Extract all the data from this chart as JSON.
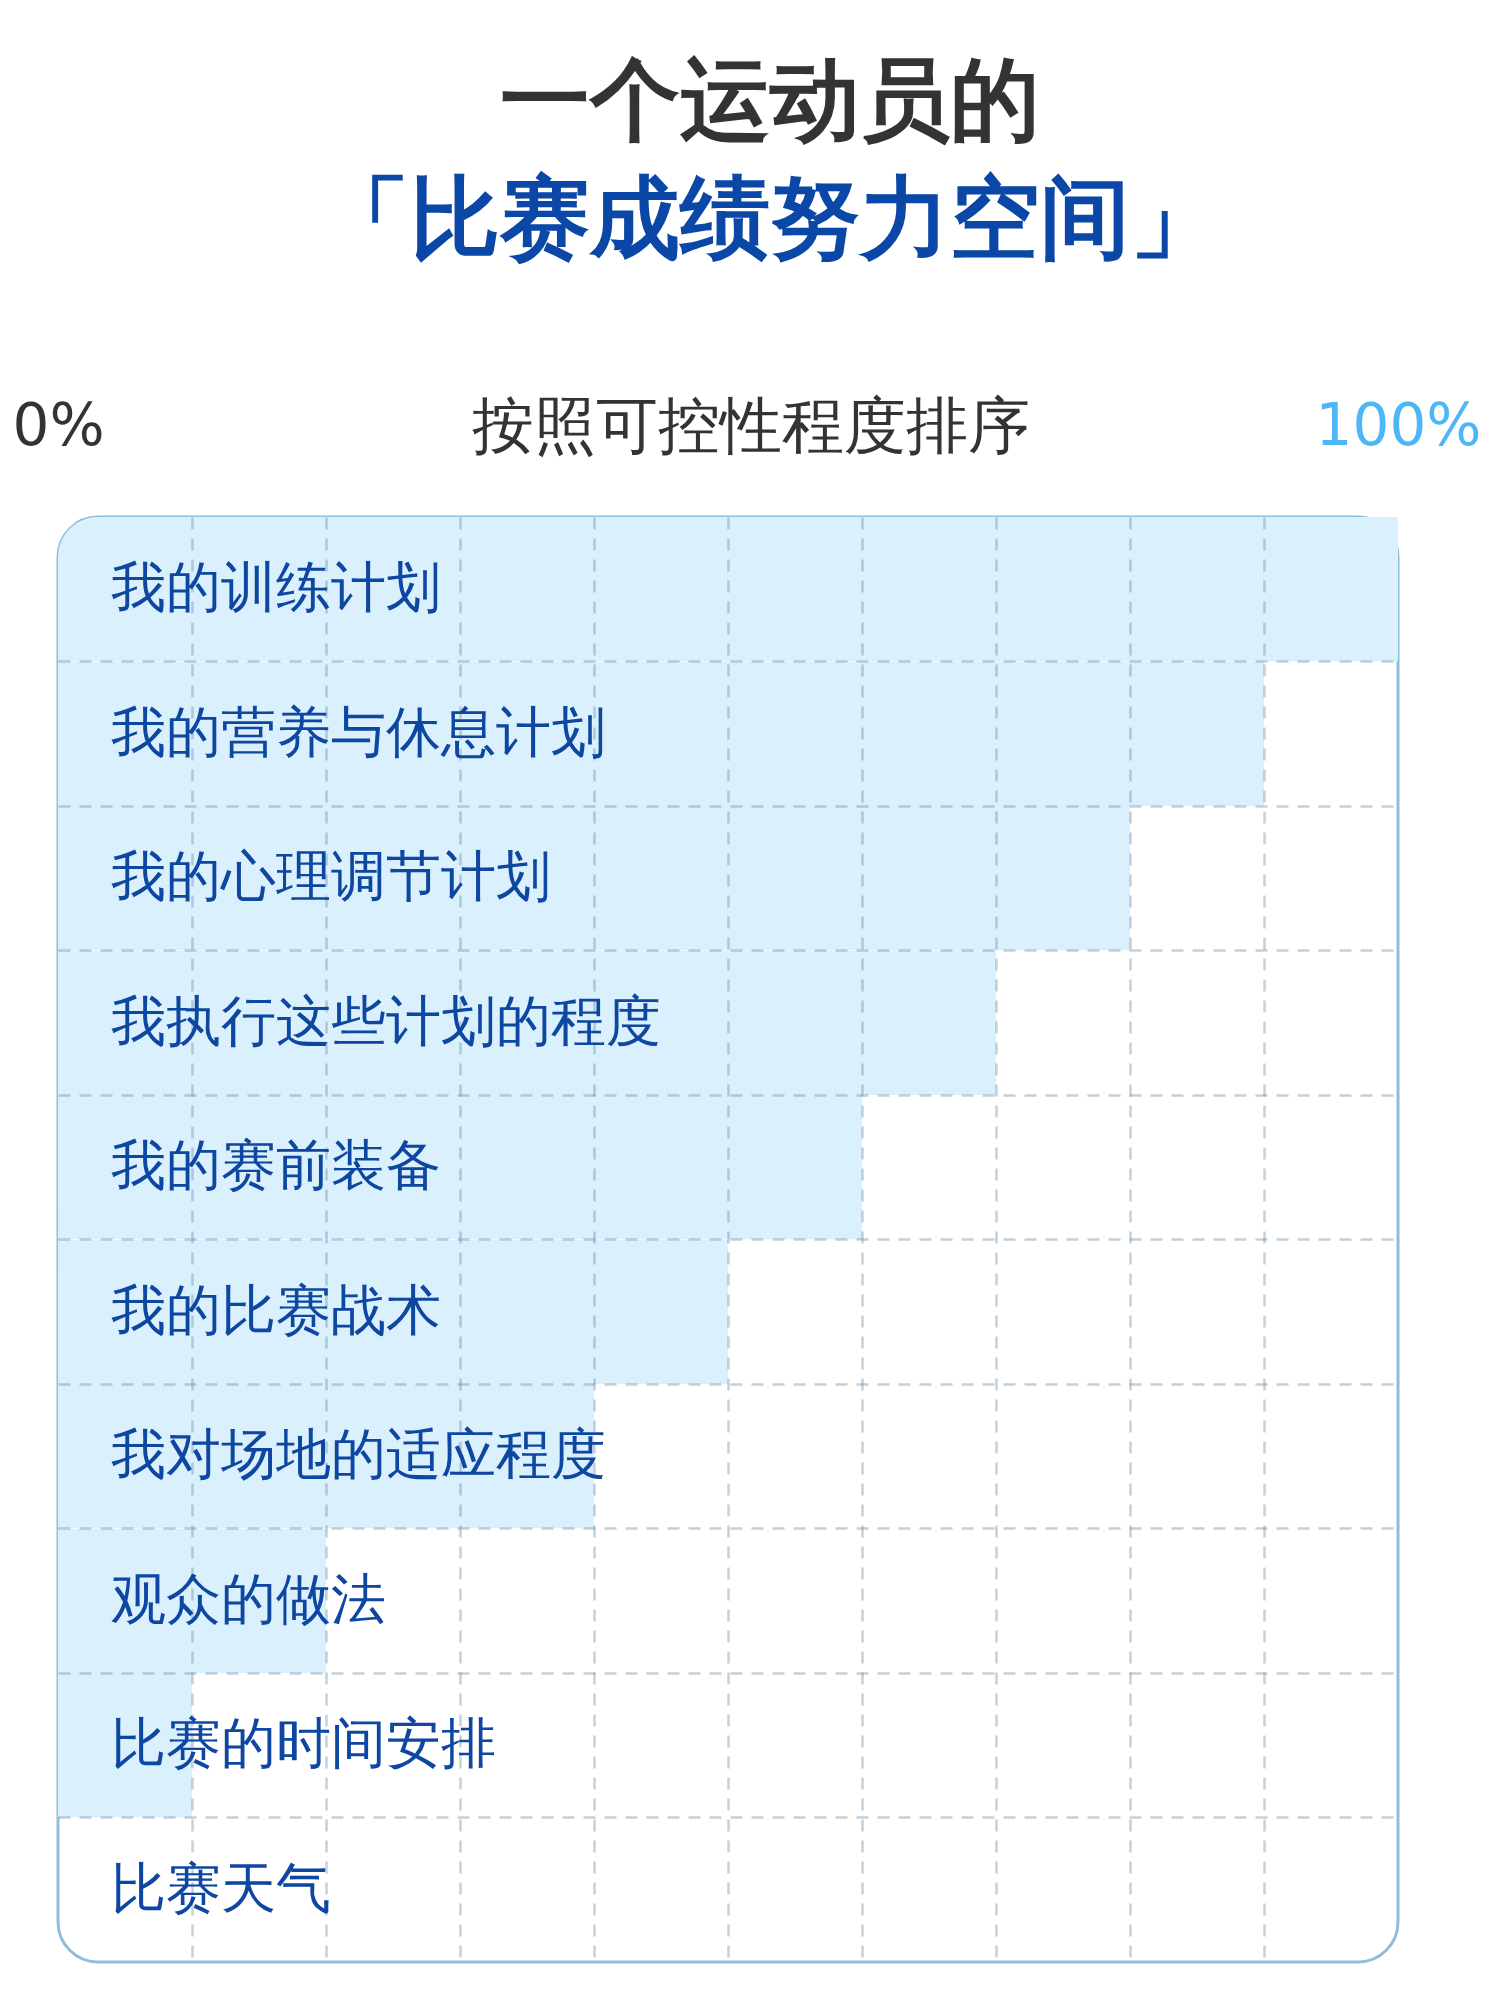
{
  "chart_data": {
    "type": "bar",
    "orientation": "horizontal",
    "title": "一个运动员的",
    "subtitle": "「比赛成绩努力空间」",
    "xlabel": "按照可控性程度排序",
    "categories": [
      "我的训练计划",
      "我的营养与休息计划",
      "我的心理调节计划",
      "我执行这些计划的程度",
      "我的赛前装备",
      "我的比赛战术",
      "我对场地的适应程度",
      "观众的做法",
      "比赛的时间安排",
      "比赛天气"
    ],
    "values": [
      100,
      90,
      80,
      70,
      60,
      50,
      40,
      20,
      10,
      0
    ],
    "color": "#dbf0fd",
    "xlim": [
      0,
      100
    ],
    "xticks": [
      {
        "value": 0,
        "label": "0%"
      },
      {
        "value": 10,
        "label": null
      },
      {
        "value": 20,
        "label": null
      },
      {
        "value": 30,
        "label": null
      },
      {
        "value": 40,
        "label": null
      },
      {
        "value": 50,
        "label": null
      },
      {
        "value": 60,
        "label": null
      },
      {
        "value": 70,
        "label": null
      },
      {
        "value": 80,
        "label": null
      },
      {
        "value": 90,
        "label": null
      },
      {
        "value": 100,
        "label": "100%"
      }
    ],
    "grid": true
  }
}
